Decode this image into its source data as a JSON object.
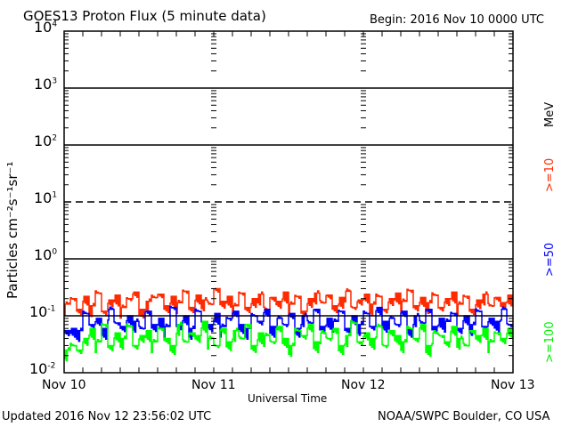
{
  "chart_data": {
    "type": "line",
    "title": "GOES13 Proton Flux (5 minute data)",
    "begin_label": "Begin: 2016 Nov 10 0000 UTC",
    "xlabel": "Universal Time",
    "ylabel": "Particles cm⁻²s⁻¹sr⁻¹",
    "yscale": "log",
    "ylim": [
      0.01,
      10000
    ],
    "xlim_hours": [
      0,
      72
    ],
    "x_ticks": [
      "Nov 10",
      "Nov 11",
      "Nov 12",
      "Nov 13"
    ],
    "y_ticks": [
      {
        "base": "10",
        "exp": "-2"
      },
      {
        "base": "10",
        "exp": "-1"
      },
      {
        "base": "10",
        "exp": "0"
      },
      {
        "base": "10",
        "exp": "1"
      },
      {
        "base": "10",
        "exp": "2"
      },
      {
        "base": "10",
        "exp": "3"
      },
      {
        "base": "10",
        "exp": "4"
      }
    ],
    "legend_unit": "MeV",
    "legend_position": "right",
    "x_hours_step": 1,
    "series": [
      {
        "name": ">=10",
        "color": "#ff2a00",
        "values": [
          0.16,
          0.2,
          0.13,
          0.22,
          0.15,
          0.25,
          0.12,
          0.19,
          0.23,
          0.14,
          0.2,
          0.26,
          0.13,
          0.18,
          0.21,
          0.24,
          0.15,
          0.22,
          0.17,
          0.27,
          0.14,
          0.23,
          0.19,
          0.16,
          0.3,
          0.18,
          0.22,
          0.15,
          0.25,
          0.14,
          0.2,
          0.24,
          0.13,
          0.21,
          0.18,
          0.26,
          0.16,
          0.22,
          0.12,
          0.2,
          0.25,
          0.17,
          0.23,
          0.15,
          0.21,
          0.27,
          0.14,
          0.19,
          0.24,
          0.16,
          0.22,
          0.13,
          0.2,
          0.25,
          0.18,
          0.28,
          0.15,
          0.21,
          0.17,
          0.23,
          0.14,
          0.2,
          0.26,
          0.16,
          0.22,
          0.13,
          0.19,
          0.24,
          0.15,
          0.21,
          0.17,
          0.23
        ]
      },
      {
        "name": ">=50",
        "color": "#0000ff",
        "values": [
          0.055,
          0.06,
          0.055,
          0.11,
          0.07,
          0.09,
          0.06,
          0.13,
          0.075,
          0.065,
          0.1,
          0.08,
          0.06,
          0.12,
          0.07,
          0.09,
          0.065,
          0.14,
          0.07,
          0.1,
          0.06,
          0.12,
          0.08,
          0.07,
          0.11,
          0.065,
          0.09,
          0.12,
          0.07,
          0.06,
          0.1,
          0.08,
          0.13,
          0.065,
          0.09,
          0.07,
          0.11,
          0.06,
          0.1,
          0.075,
          0.13,
          0.065,
          0.09,
          0.08,
          0.12,
          0.06,
          0.1,
          0.07,
          0.11,
          0.065,
          0.14,
          0.08,
          0.09,
          0.07,
          0.12,
          0.06,
          0.1,
          0.075,
          0.13,
          0.065,
          0.09,
          0.08,
          0.11,
          0.06,
          0.1,
          0.07,
          0.12,
          0.065,
          0.09,
          0.08,
          0.13,
          0.07
        ]
      },
      {
        "name": ">=100",
        "color": "#00ff00",
        "values": [
          0.025,
          0.03,
          0.025,
          0.04,
          0.06,
          0.035,
          0.07,
          0.03,
          0.05,
          0.04,
          0.065,
          0.03,
          0.045,
          0.055,
          0.035,
          0.06,
          0.04,
          0.03,
          0.07,
          0.035,
          0.05,
          0.045,
          0.08,
          0.04,
          0.03,
          0.06,
          0.035,
          0.055,
          0.04,
          0.07,
          0.03,
          0.05,
          0.045,
          0.035,
          0.065,
          0.04,
          0.03,
          0.055,
          0.045,
          0.07,
          0.035,
          0.05,
          0.04,
          0.06,
          0.03,
          0.045,
          0.075,
          0.035,
          0.05,
          0.04,
          0.065,
          0.03,
          0.055,
          0.045,
          0.035,
          0.06,
          0.04,
          0.07,
          0.03,
          0.05,
          0.045,
          0.035,
          0.065,
          0.04,
          0.03,
          0.055,
          0.045,
          0.06,
          0.035,
          0.05,
          0.04,
          0.06
        ]
      }
    ]
  },
  "footer": {
    "updated": "Updated 2016 Nov 12 23:56:02 UTC",
    "source": "NOAA/SWPC Boulder, CO USA"
  }
}
